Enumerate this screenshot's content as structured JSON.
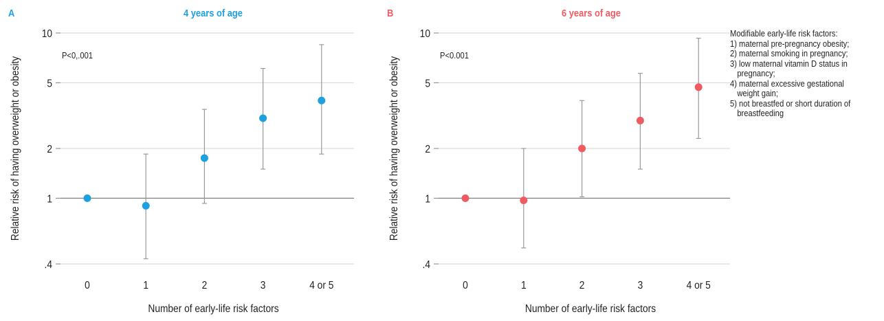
{
  "colors": {
    "panel_a": "#1ca0de",
    "panel_b": "#ef5b62",
    "error_bar": "#999999",
    "axis": "#808080",
    "grid": "#d6d6d6"
  },
  "legend": {
    "title": "Modifiable early-life risk factors:",
    "items": [
      "1) maternal pre-pregnancy obesity;",
      "2) maternal smoking in pregnancy;",
      "3) low maternal vitamin D status in pregnancy;",
      "4) maternal excessive gestational weight gain;",
      "5) not breastfed or short duration of breastfeeding"
    ]
  },
  "chart_data": [
    {
      "type": "scatter",
      "panel_letter": "A",
      "title": "4 years of age",
      "annotation": "P<0,.001",
      "xlabel": "Number of early-life risk factors",
      "ylabel": "Relative risk of having overweight or obesity",
      "yscale": "log",
      "ylim": [
        0.4,
        10
      ],
      "yticks": [
        0.4,
        1,
        2,
        5,
        10
      ],
      "ytick_labels": [
        ".4",
        "1",
        "2",
        "5",
        "10"
      ],
      "grid": true,
      "categories": [
        "0",
        "1",
        "2",
        "3",
        "4 or 5"
      ],
      "values": [
        1.0,
        0.9,
        1.75,
        3.05,
        3.9
      ],
      "ci_lower": [
        null,
        0.43,
        0.93,
        1.5,
        1.85
      ],
      "ci_upper": [
        null,
        1.85,
        3.45,
        6.1,
        8.5
      ]
    },
    {
      "type": "scatter",
      "panel_letter": "B",
      "title": "6 years of age",
      "annotation": "P<0.001",
      "xlabel": "Number of early-life risk factors",
      "ylabel": "Relative risk of having overweight or obesity",
      "yscale": "log",
      "ylim": [
        0.4,
        10
      ],
      "yticks": [
        0.4,
        1,
        2,
        5,
        10
      ],
      "ytick_labels": [
        ".4",
        "1",
        "2",
        "5",
        "10"
      ],
      "grid": true,
      "categories": [
        "0",
        "1",
        "2",
        "3",
        "4 or 5"
      ],
      "values": [
        1.0,
        0.97,
        2.0,
        2.95,
        4.7
      ],
      "ci_lower": [
        null,
        0.5,
        1.02,
        1.5,
        2.3
      ],
      "ci_upper": [
        null,
        2.0,
        3.9,
        5.7,
        9.3
      ]
    }
  ]
}
